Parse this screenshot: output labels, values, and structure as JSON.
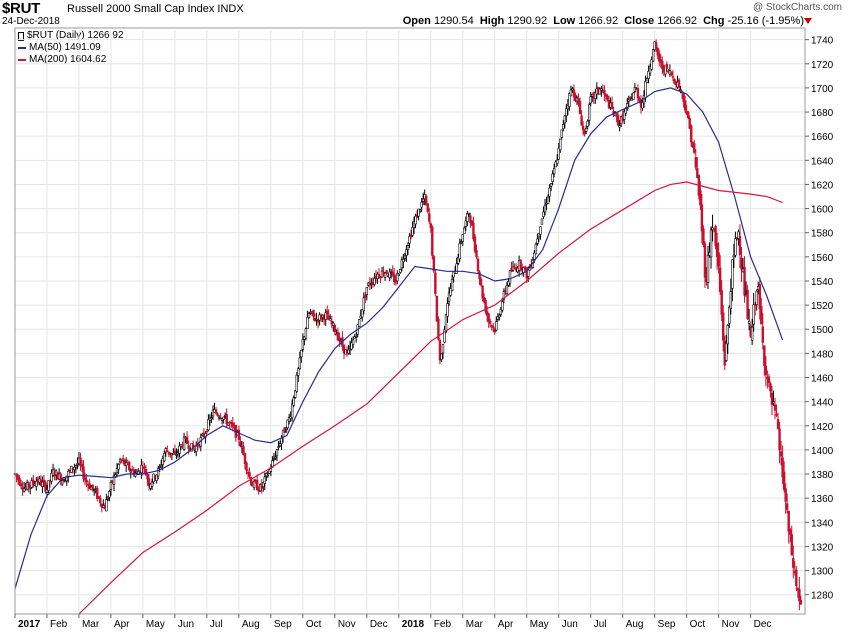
{
  "header": {
    "ticker": "$RUT",
    "name": "Russell 2000 Small Cap Index",
    "exchange": "INDX",
    "date": "24-Dec-2018",
    "credit": "@ StockCharts.com",
    "open_label": "Open",
    "open": "1290.54",
    "high_label": "High",
    "high": "1290.92",
    "low_label": "Low",
    "low": "1266.92",
    "close_label": "Close",
    "close": "1266.92",
    "chg_label": "Chg",
    "chg": "-25.16 (-1.95%)"
  },
  "legend": [
    {
      "label": "$RUT (Daily) 1266.92",
      "color": "#000000",
      "kind": "candle"
    },
    {
      "label": "MA(50) 1491.09",
      "color": "#2b2b8f",
      "kind": "line"
    },
    {
      "label": "MA(200) 1604.62",
      "color": "#d4163b",
      "kind": "line"
    }
  ],
  "colors": {
    "up": "#000000",
    "down": "#c8102e",
    "ma50": "#2b2b8f",
    "ma200": "#d4163b",
    "grid": "#e6e6e6",
    "axis": "#333333"
  },
  "chart_data": {
    "type": "candlestick",
    "title": "Russell 2000 Small Cap Index",
    "ylim": [
      1264,
      1748
    ],
    "yticks": [
      1280,
      1300,
      1320,
      1340,
      1360,
      1380,
      1400,
      1420,
      1440,
      1460,
      1480,
      1500,
      1520,
      1540,
      1560,
      1580,
      1600,
      1620,
      1640,
      1660,
      1680,
      1700,
      1720,
      1740
    ],
    "x_range_months": [
      0,
      23.8
    ],
    "xticks": [
      {
        "label": "2017",
        "m": 0,
        "bold": true
      },
      {
        "label": "Feb",
        "m": 1
      },
      {
        "label": "Mar",
        "m": 2
      },
      {
        "label": "Apr",
        "m": 3
      },
      {
        "label": "May",
        "m": 4
      },
      {
        "label": "Jun",
        "m": 5
      },
      {
        "label": "Jul",
        "m": 6
      },
      {
        "label": "Aug",
        "m": 7
      },
      {
        "label": "Sep",
        "m": 8
      },
      {
        "label": "Oct",
        "m": 9
      },
      {
        "label": "Nov",
        "m": 10
      },
      {
        "label": "Dec",
        "m": 11
      },
      {
        "label": "2018",
        "m": 12,
        "bold": true
      },
      {
        "label": "Feb",
        "m": 13
      },
      {
        "label": "Mar",
        "m": 14
      },
      {
        "label": "Apr",
        "m": 15
      },
      {
        "label": "May",
        "m": 16
      },
      {
        "label": "Jun",
        "m": 17
      },
      {
        "label": "Jul",
        "m": 18
      },
      {
        "label": "Aug",
        "m": 19
      },
      {
        "label": "Sep",
        "m": 20
      },
      {
        "label": "Oct",
        "m": 21
      },
      {
        "label": "Nov",
        "m": 22
      },
      {
        "label": "Dec",
        "m": 23
      }
    ],
    "price_path": [
      [
        0,
        1380
      ],
      [
        0.3,
        1368
      ],
      [
        0.7,
        1375
      ],
      [
        1.0,
        1368
      ],
      [
        1.2,
        1382
      ],
      [
        1.5,
        1375
      ],
      [
        1.8,
        1385
      ],
      [
        2.0,
        1390
      ],
      [
        2.2,
        1375
      ],
      [
        2.5,
        1365
      ],
      [
        2.8,
        1352
      ],
      [
        3.0,
        1370
      ],
      [
        3.3,
        1392
      ],
      [
        3.5,
        1386
      ],
      [
        3.8,
        1380
      ],
      [
        4.0,
        1388
      ],
      [
        4.2,
        1372
      ],
      [
        4.5,
        1383
      ],
      [
        4.7,
        1400
      ],
      [
        5.0,
        1395
      ],
      [
        5.3,
        1408
      ],
      [
        5.6,
        1400
      ],
      [
        5.9,
        1412
      ],
      [
        6.2,
        1432
      ],
      [
        6.5,
        1428
      ],
      [
        6.8,
        1418
      ],
      [
        7.0,
        1410
      ],
      [
        7.2,
        1390
      ],
      [
        7.4,
        1372
      ],
      [
        7.7,
        1368
      ],
      [
        8.0,
        1386
      ],
      [
        8.3,
        1408
      ],
      [
        8.6,
        1428
      ],
      [
        8.9,
        1472
      ],
      [
        9.0,
        1490
      ],
      [
        9.2,
        1514
      ],
      [
        9.4,
        1508
      ],
      [
        9.7,
        1512
      ],
      [
        10.0,
        1500
      ],
      [
        10.2,
        1488
      ],
      [
        10.4,
        1478
      ],
      [
        10.7,
        1500
      ],
      [
        11.0,
        1535
      ],
      [
        11.3,
        1545
      ],
      [
        11.6,
        1548
      ],
      [
        11.9,
        1540
      ],
      [
        12.2,
        1565
      ],
      [
        12.5,
        1590
      ],
      [
        12.8,
        1610
      ],
      [
        13.0,
        1582
      ],
      [
        13.2,
        1505
      ],
      [
        13.3,
        1470
      ],
      [
        13.5,
        1520
      ],
      [
        13.8,
        1555
      ],
      [
        14.0,
        1580
      ],
      [
        14.2,
        1598
      ],
      [
        14.4,
        1565
      ],
      [
        14.6,
        1530
      ],
      [
        14.8,
        1508
      ],
      [
        15.0,
        1500
      ],
      [
        15.2,
        1520
      ],
      [
        15.5,
        1548
      ],
      [
        15.8,
        1555
      ],
      [
        16.0,
        1545
      ],
      [
        16.2,
        1560
      ],
      [
        16.4,
        1585
      ],
      [
        16.6,
        1605
      ],
      [
        16.8,
        1625
      ],
      [
        17.0,
        1648
      ],
      [
        17.2,
        1680
      ],
      [
        17.4,
        1700
      ],
      [
        17.6,
        1688
      ],
      [
        17.8,
        1660
      ],
      [
        18.0,
        1690
      ],
      [
        18.3,
        1700
      ],
      [
        18.6,
        1685
      ],
      [
        18.9,
        1670
      ],
      [
        19.1,
        1682
      ],
      [
        19.4,
        1700
      ],
      [
        19.6,
        1685
      ],
      [
        19.8,
        1715
      ],
      [
        20.0,
        1735
      ],
      [
        20.2,
        1718
      ],
      [
        20.5,
        1712
      ],
      [
        20.8,
        1700
      ],
      [
        21.0,
        1680
      ],
      [
        21.2,
        1650
      ],
      [
        21.4,
        1610
      ],
      [
        21.6,
        1540
      ],
      [
        21.8,
        1590
      ],
      [
        22.0,
        1550
      ],
      [
        22.2,
        1470
      ],
      [
        22.4,
        1545
      ],
      [
        22.6,
        1585
      ],
      [
        22.8,
        1535
      ],
      [
        23.0,
        1490
      ],
      [
        23.2,
        1540
      ],
      [
        23.4,
        1482
      ],
      [
        23.6,
        1445
      ],
      [
        23.8,
        1425
      ],
      [
        24.0,
        1380
      ],
      [
        24.2,
        1330
      ],
      [
        24.4,
        1292
      ],
      [
        24.6,
        1267
      ]
    ],
    "series": [
      {
        "name": "MA(50)",
        "points": [
          [
            0,
            1285
          ],
          [
            0.5,
            1330
          ],
          [
            1.0,
            1362
          ],
          [
            1.5,
            1377
          ],
          [
            2.0,
            1379
          ],
          [
            2.5,
            1378
          ],
          [
            3.0,
            1377
          ],
          [
            3.5,
            1380
          ],
          [
            4.0,
            1380
          ],
          [
            4.5,
            1383
          ],
          [
            5.0,
            1390
          ],
          [
            5.5,
            1400
          ],
          [
            6.0,
            1412
          ],
          [
            6.5,
            1420
          ],
          [
            7.0,
            1414
          ],
          [
            7.5,
            1408
          ],
          [
            8.0,
            1406
          ],
          [
            8.5,
            1412
          ],
          [
            9.0,
            1440
          ],
          [
            9.5,
            1465
          ],
          [
            10.0,
            1484
          ],
          [
            10.5,
            1496
          ],
          [
            11.0,
            1505
          ],
          [
            11.5,
            1518
          ],
          [
            12.0,
            1535
          ],
          [
            12.5,
            1552
          ],
          [
            13.0,
            1550
          ],
          [
            13.5,
            1548
          ],
          [
            14.0,
            1548
          ],
          [
            14.5,
            1546
          ],
          [
            15.0,
            1540
          ],
          [
            15.5,
            1542
          ],
          [
            16.0,
            1548
          ],
          [
            16.5,
            1566
          ],
          [
            17.0,
            1600
          ],
          [
            17.5,
            1640
          ],
          [
            18.0,
            1662
          ],
          [
            18.5,
            1676
          ],
          [
            19.0,
            1682
          ],
          [
            19.5,
            1688
          ],
          [
            20.0,
            1697
          ],
          [
            20.5,
            1700
          ],
          [
            21.0,
            1695
          ],
          [
            21.5,
            1680
          ],
          [
            22.0,
            1655
          ],
          [
            22.5,
            1610
          ],
          [
            23.0,
            1560
          ],
          [
            23.5,
            1528
          ],
          [
            24.0,
            1491
          ]
        ]
      },
      {
        "name": "MA(200)",
        "points": [
          [
            2.0,
            1264
          ],
          [
            3.0,
            1290
          ],
          [
            4.0,
            1315
          ],
          [
            5.0,
            1332
          ],
          [
            6.0,
            1350
          ],
          [
            7.0,
            1370
          ],
          [
            8.0,
            1385
          ],
          [
            9.0,
            1403
          ],
          [
            10.0,
            1420
          ],
          [
            11.0,
            1438
          ],
          [
            12.0,
            1464
          ],
          [
            13.0,
            1490
          ],
          [
            14.0,
            1508
          ],
          [
            15.0,
            1520
          ],
          [
            16.0,
            1540
          ],
          [
            17.0,
            1563
          ],
          [
            18.0,
            1583
          ],
          [
            19.0,
            1599
          ],
          [
            20.0,
            1615
          ],
          [
            20.5,
            1620
          ],
          [
            21.0,
            1622
          ],
          [
            22.0,
            1615
          ],
          [
            23.0,
            1612
          ],
          [
            23.5,
            1610
          ],
          [
            24.0,
            1605
          ]
        ]
      }
    ]
  }
}
